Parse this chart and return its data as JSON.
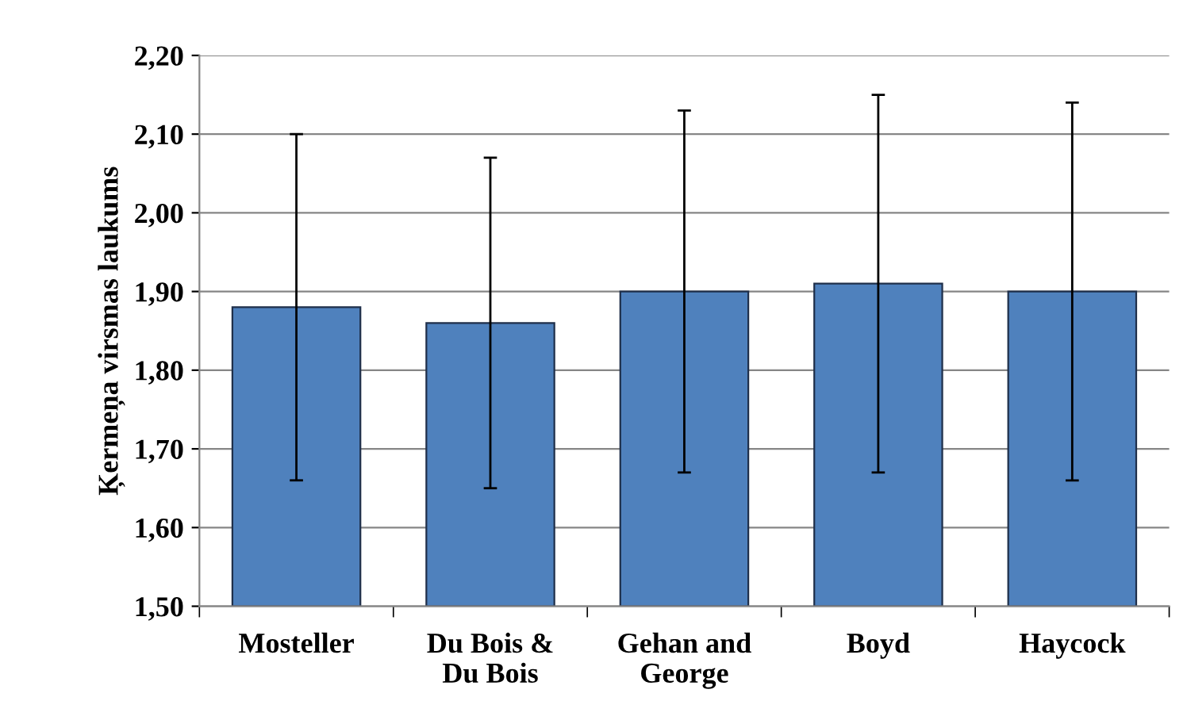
{
  "chart_data": {
    "type": "bar",
    "ylabel": "Ķermeņa virsmas laukums",
    "categories": [
      "Mosteller",
      "Du Bois &\nDu Bois",
      "Gehan and\nGeorge",
      "Boyd",
      "Haycock"
    ],
    "values": [
      1.88,
      1.86,
      1.9,
      1.91,
      1.9
    ],
    "errors": [
      0.22,
      0.21,
      0.23,
      0.24,
      0.24
    ],
    "color": "#4f81bd",
    "ylim": [
      1.5,
      2.2
    ],
    "yticks": [
      {
        "value": 1.5,
        "label": "1,50"
      },
      {
        "value": 1.6,
        "label": "1,60"
      },
      {
        "value": 1.7,
        "label": "1,70"
      },
      {
        "value": 1.8,
        "label": "1,80"
      },
      {
        "value": 1.9,
        "label": "1,90"
      },
      {
        "value": 2.0,
        "label": "2,00"
      },
      {
        "value": 2.1,
        "label": "2,10"
      },
      {
        "value": 2.2,
        "label": "2,20"
      }
    ],
    "grid": "y",
    "legend": false
  }
}
